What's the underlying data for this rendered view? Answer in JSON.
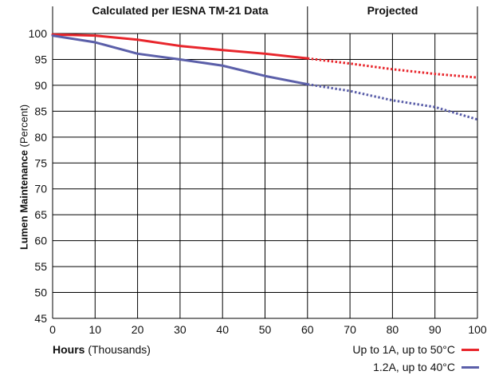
{
  "chart_data": {
    "type": "line",
    "header": {
      "left": "Calculated per IESNA TM-21 Data",
      "right": "Projected"
    },
    "xlabel": {
      "bold": "Hours",
      "rest": " (Thousands)"
    },
    "ylabel": {
      "bold": "Lumen Maintenance",
      "rest": " (Percent)"
    },
    "xlim": [
      0,
      100
    ],
    "ylim": [
      45,
      100
    ],
    "xticks": [
      0,
      10,
      20,
      30,
      40,
      50,
      60,
      70,
      80,
      90,
      100
    ],
    "yticks": [
      45,
      50,
      55,
      60,
      65,
      70,
      75,
      80,
      85,
      90,
      95,
      100
    ],
    "projection_start": 60,
    "grid": true,
    "series": [
      {
        "name": "Up to 1A, up to  50°C",
        "color": "#e8262c",
        "calculated": {
          "x": [
            0,
            10,
            20,
            30,
            40,
            50,
            60
          ],
          "y": [
            99.8,
            99.6,
            98.8,
            97.6,
            96.8,
            96.1,
            95.2
          ]
        },
        "projected": {
          "x": [
            60,
            70,
            80,
            90,
            100
          ],
          "y": [
            95.2,
            94.2,
            93.1,
            92.2,
            91.5
          ]
        }
      },
      {
        "name": "1.2A, up to  40°C",
        "color": "#5b5fa9",
        "calculated": {
          "x": [
            0,
            10,
            20,
            30,
            40,
            50,
            60
          ],
          "y": [
            99.6,
            98.3,
            96.1,
            95.0,
            93.8,
            91.8,
            90.2
          ]
        },
        "projected": {
          "x": [
            60,
            70,
            80,
            90,
            100
          ],
          "y": [
            90.2,
            88.9,
            87.1,
            85.8,
            83.4
          ]
        }
      }
    ]
  }
}
